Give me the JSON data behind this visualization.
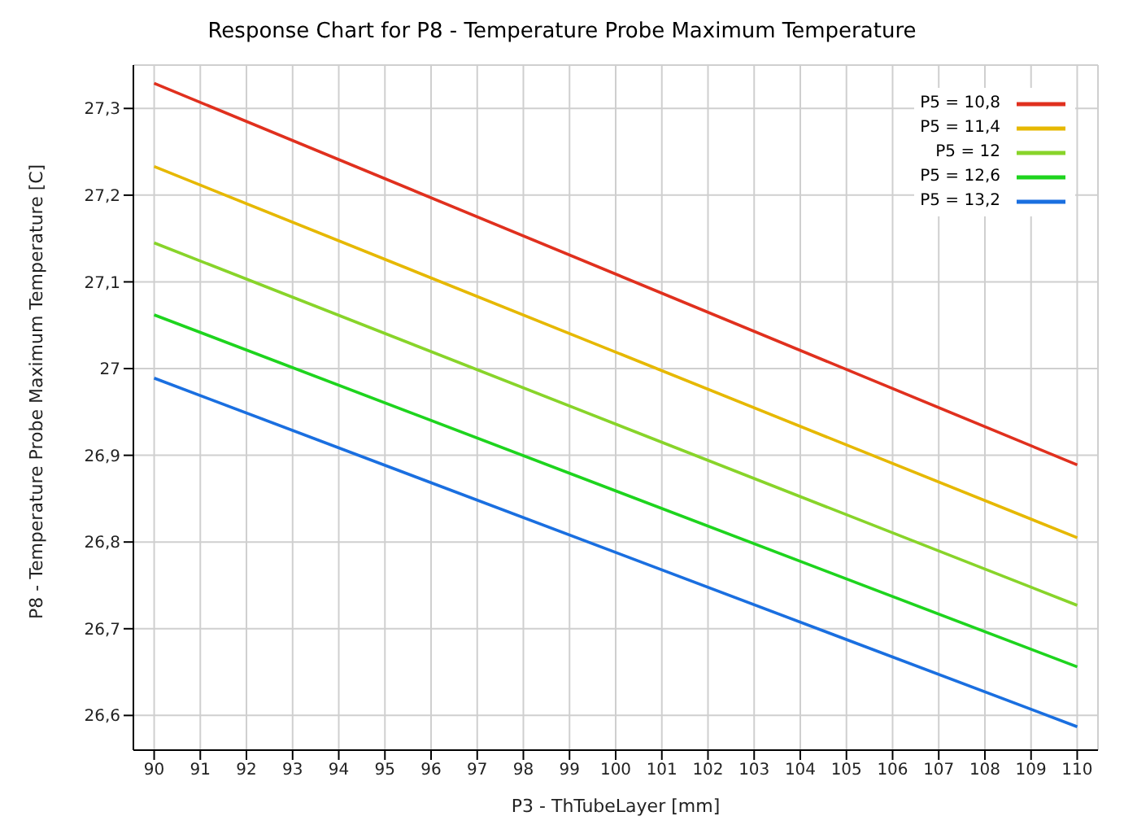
{
  "chart_data": {
    "type": "line",
    "title": "Response Chart for P8 - Temperature Probe Maximum Temperature",
    "xlabel": "P3 - ThTubeLayer  [mm]",
    "ylabel": "P8 - Temperature Probe Maximum Temperature  [C]",
    "x": [
      90,
      110
    ],
    "series": [
      {
        "name": "P5 = 10,8",
        "color": "#e0301e",
        "values": [
          27.329,
          26.889
        ]
      },
      {
        "name": "P5 = 11,4",
        "color": "#e6b800",
        "values": [
          27.233,
          26.805
        ]
      },
      {
        "name": "P5 = 12",
        "color": "#88d42a",
        "values": [
          27.145,
          26.727
        ]
      },
      {
        "name": "P5 = 12,6",
        "color": "#1ed41e",
        "values": [
          27.062,
          26.656
        ]
      },
      {
        "name": "P5 = 13,2",
        "color": "#1a6fe0",
        "values": [
          26.989,
          26.587
        ]
      }
    ],
    "xlim": [
      89.55,
      110.45
    ],
    "xticks": [
      90,
      91,
      92,
      93,
      94,
      95,
      96,
      97,
      98,
      99,
      100,
      101,
      102,
      103,
      104,
      105,
      106,
      107,
      108,
      109,
      110
    ],
    "ylim": [
      26.56,
      27.35
    ],
    "yticks": [
      {
        "value": 26.6,
        "label": "26,6"
      },
      {
        "value": 26.7,
        "label": "26,7"
      },
      {
        "value": 26.8,
        "label": "26,8"
      },
      {
        "value": 26.9,
        "label": "26,9"
      },
      27,
      {
        "value": 27.1,
        "label": "27,1"
      },
      {
        "value": 27.2,
        "label": "27,2"
      },
      {
        "value": 27.3,
        "label": "27,3"
      }
    ],
    "grid": true,
    "legend": "top right",
    "marker": "none",
    "line_style": "solid"
  }
}
